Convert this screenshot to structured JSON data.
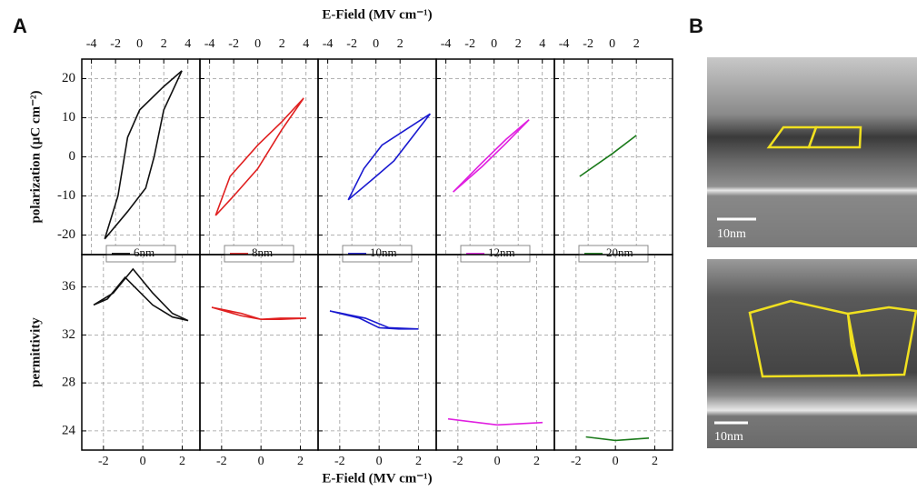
{
  "panel_labels": {
    "a": "A",
    "b": "B"
  },
  "tem_images": [
    {
      "scale_label": "10nm"
    },
    {
      "scale_label": "10nm"
    }
  ],
  "chart_data": [
    {
      "type": "line",
      "xlabel": "E-Field (MV cm⁻¹)",
      "ylabel": "polarization (µC cm⁻²)",
      "xlim": [
        -4.8,
        5
      ],
      "ylim": [
        -25,
        25
      ],
      "xticks": [
        -4,
        -2,
        0,
        2,
        4
      ],
      "yticks": [
        -20,
        -10,
        0,
        10,
        20
      ],
      "show_yticklabels": true,
      "grid": true,
      "x": [
        -2.9,
        -1.8,
        -1,
        0,
        2,
        3.5,
        2,
        1.2,
        0.5,
        -1,
        -2.9
      ],
      "series": [
        {
          "name": "6nm",
          "color": "#111111",
          "values": [
            -21,
            -10,
            5,
            12,
            18,
            22,
            12,
            0,
            -8,
            -14,
            -21
          ]
        }
      ]
    },
    {
      "type": "line",
      "xlim": [
        -4.8,
        5
      ],
      "ylim": [
        -25,
        25
      ],
      "xticks": [
        -4,
        -2,
        0,
        2,
        4
      ],
      "yticks": [
        -20,
        -10,
        0,
        10,
        20
      ],
      "show_yticklabels": false,
      "grid": true,
      "x": [
        -3.5,
        -2.3,
        0,
        2,
        3.8,
        2,
        0,
        -2,
        -3.5
      ],
      "series": [
        {
          "name": "8nm",
          "color": "#e02020",
          "values": [
            -15,
            -5,
            3,
            9,
            15,
            7,
            -3,
            -10,
            -15
          ]
        }
      ]
    },
    {
      "type": "line",
      "xlim": [
        -4.8,
        5
      ],
      "ylim": [
        -25,
        25
      ],
      "xticks": [
        -4,
        -2,
        0,
        2
      ],
      "yticks": [
        -20,
        -10,
        0,
        10,
        20
      ],
      "show_yticklabels": false,
      "grid": true,
      "x": [
        -2.3,
        -1,
        0.5,
        2,
        4.5,
        3,
        1.5,
        0,
        -2.3
      ],
      "series": [
        {
          "name": "10nm",
          "color": "#1a1ad0",
          "values": [
            -11,
            -3,
            3,
            6,
            11,
            5,
            -1,
            -5,
            -11
          ]
        }
      ]
    },
    {
      "type": "line",
      "xlim": [
        -4.8,
        5
      ],
      "ylim": [
        -25,
        25
      ],
      "xticks": [
        -4,
        -2,
        0,
        2,
        4
      ],
      "yticks": [
        -20,
        -10,
        0,
        10,
        20
      ],
      "show_yticklabels": false,
      "grid": true,
      "x": [
        -3.4,
        -1,
        1,
        2.9,
        1,
        -1,
        -3.4
      ],
      "series": [
        {
          "name": "12nm",
          "color": "#e020e0",
          "values": [
            -9,
            -1.5,
            4.5,
            9.5,
            3.5,
            -2.5,
            -9
          ]
        }
      ]
    },
    {
      "type": "line",
      "xlim": [
        -4.8,
        5
      ],
      "ylim": [
        -25,
        25
      ],
      "xticks": [
        -4,
        -2,
        0,
        2
      ],
      "yticks": [
        -20,
        -10,
        0,
        10,
        20
      ],
      "show_yticklabels": false,
      "grid": true,
      "x": [
        -2.7,
        0,
        2
      ],
      "series": [
        {
          "name": "20nm",
          "color": "#1a7a1a",
          "values": [
            -5,
            0.8,
            5.5
          ]
        }
      ]
    },
    {
      "type": "line",
      "xlabel": "E-Field (MV cm⁻¹)",
      "ylabel": "permittivity",
      "xlim": [
        -3.1,
        2.9
      ],
      "ylim": [
        22.4,
        38.7
      ],
      "xticks": [
        -2,
        0,
        2
      ],
      "yticks": [
        24,
        28,
        32,
        36
      ],
      "show_yticklabels": true,
      "grid": true,
      "x": [
        -2.5,
        -1.5,
        -0.5,
        0.5,
        1.5,
        2.3,
        1.5,
        0.5,
        -0.9,
        -1.8,
        -2.5
      ],
      "series": [
        {
          "color": "#111111",
          "values": [
            34.5,
            35.5,
            37.5,
            35.5,
            33.8,
            33.2,
            33.5,
            34.5,
            36.8,
            35,
            34.5
          ]
        }
      ]
    },
    {
      "type": "line",
      "xlim": [
        -3.1,
        2.9
      ],
      "ylim": [
        22.4,
        38.7
      ],
      "xticks": [
        -2,
        0,
        2
      ],
      "yticks": [
        24,
        28,
        32,
        36
      ],
      "show_yticklabels": false,
      "grid": true,
      "x": [
        -2.5,
        -1,
        0,
        1,
        2.3,
        1,
        0,
        -1,
        -2.5
      ],
      "series": [
        {
          "color": "#e02020",
          "values": [
            34.3,
            33.8,
            33.3,
            33.3,
            33.4,
            33.4,
            33.3,
            33.6,
            34.3
          ]
        }
      ]
    },
    {
      "type": "line",
      "xlim": [
        -3.1,
        2.9
      ],
      "ylim": [
        22.4,
        38.7
      ],
      "xticks": [
        -2,
        0,
        2
      ],
      "yticks": [
        24,
        28,
        32,
        36
      ],
      "show_yticklabels": false,
      "grid": true,
      "x": [
        -2.5,
        -1,
        0,
        1,
        2,
        0.5,
        -0.7,
        -2.5
      ],
      "series": [
        {
          "color": "#1a1ad0",
          "values": [
            34,
            33.4,
            32.6,
            32.5,
            32.5,
            32.6,
            33.4,
            34
          ]
        }
      ]
    },
    {
      "type": "line",
      "xlim": [
        -3.1,
        2.9
      ],
      "ylim": [
        22.4,
        38.7
      ],
      "xticks": [
        -2,
        0,
        2
      ],
      "yticks": [
        24,
        28,
        32,
        36
      ],
      "show_yticklabels": false,
      "grid": true,
      "x": [
        -2.5,
        0,
        2.3
      ],
      "series": [
        {
          "color": "#e020e0",
          "values": [
            25,
            24.5,
            24.7
          ]
        }
      ]
    },
    {
      "type": "line",
      "xlim": [
        -3.1,
        2.9
      ],
      "ylim": [
        22.4,
        38.7
      ],
      "xticks": [
        -2,
        0,
        2
      ],
      "yticks": [
        24,
        28,
        32,
        36
      ],
      "show_yticklabels": false,
      "grid": true,
      "x": [
        -1.5,
        0,
        1.7
      ],
      "series": [
        {
          "color": "#1a7a1a",
          "values": [
            23.5,
            23.2,
            23.4
          ]
        }
      ]
    }
  ]
}
